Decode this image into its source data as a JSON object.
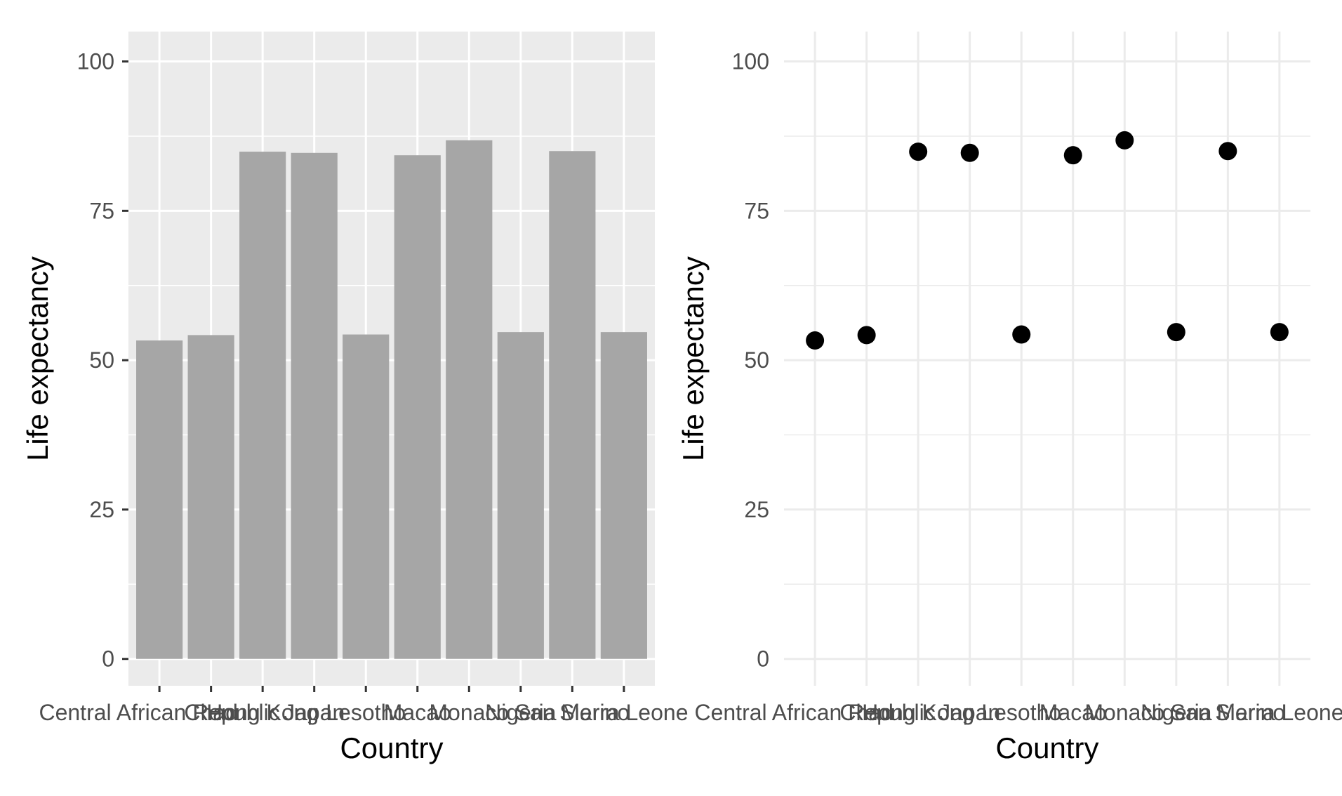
{
  "chart_data": [
    {
      "type": "bar",
      "theme": "grey",
      "categories": [
        "Central African Republic",
        "Chad",
        "Hong Kong",
        "Japan",
        "Lesotho",
        "Macao",
        "Monaco",
        "Nigeria",
        "San Marino",
        "Sierra Leone"
      ],
      "values": [
        53.3,
        54.2,
        84.9,
        84.7,
        54.3,
        84.3,
        86.8,
        54.7,
        85.0,
        54.7
      ],
      "xlabel": "Country",
      "ylabel": "Life expectancy",
      "ylim": [
        -4.5,
        105
      ],
      "yticks": [
        0,
        25,
        50,
        75,
        100
      ],
      "grid": true,
      "colors": {
        "panel": "#ebebeb",
        "grid": "#ffffff",
        "bar": "#a6a6a6"
      }
    },
    {
      "type": "scatter",
      "theme": "minimal",
      "categories": [
        "Central African Republic",
        "Chad",
        "Hong Kong",
        "Japan",
        "Lesotho",
        "Macao",
        "Monaco",
        "Nigeria",
        "San Marino",
        "Sierra Leone"
      ],
      "values": [
        53.3,
        54.2,
        84.9,
        84.7,
        54.3,
        84.3,
        86.8,
        54.7,
        85.0,
        54.7
      ],
      "xlabel": "Country",
      "ylabel": "Life expectancy",
      "ylim": [
        -4.5,
        105
      ],
      "yticks": [
        0,
        25,
        50,
        75,
        100
      ],
      "grid": true,
      "colors": {
        "panel": "#ffffff",
        "grid": "#ebebeb",
        "point": "#000000"
      }
    }
  ]
}
